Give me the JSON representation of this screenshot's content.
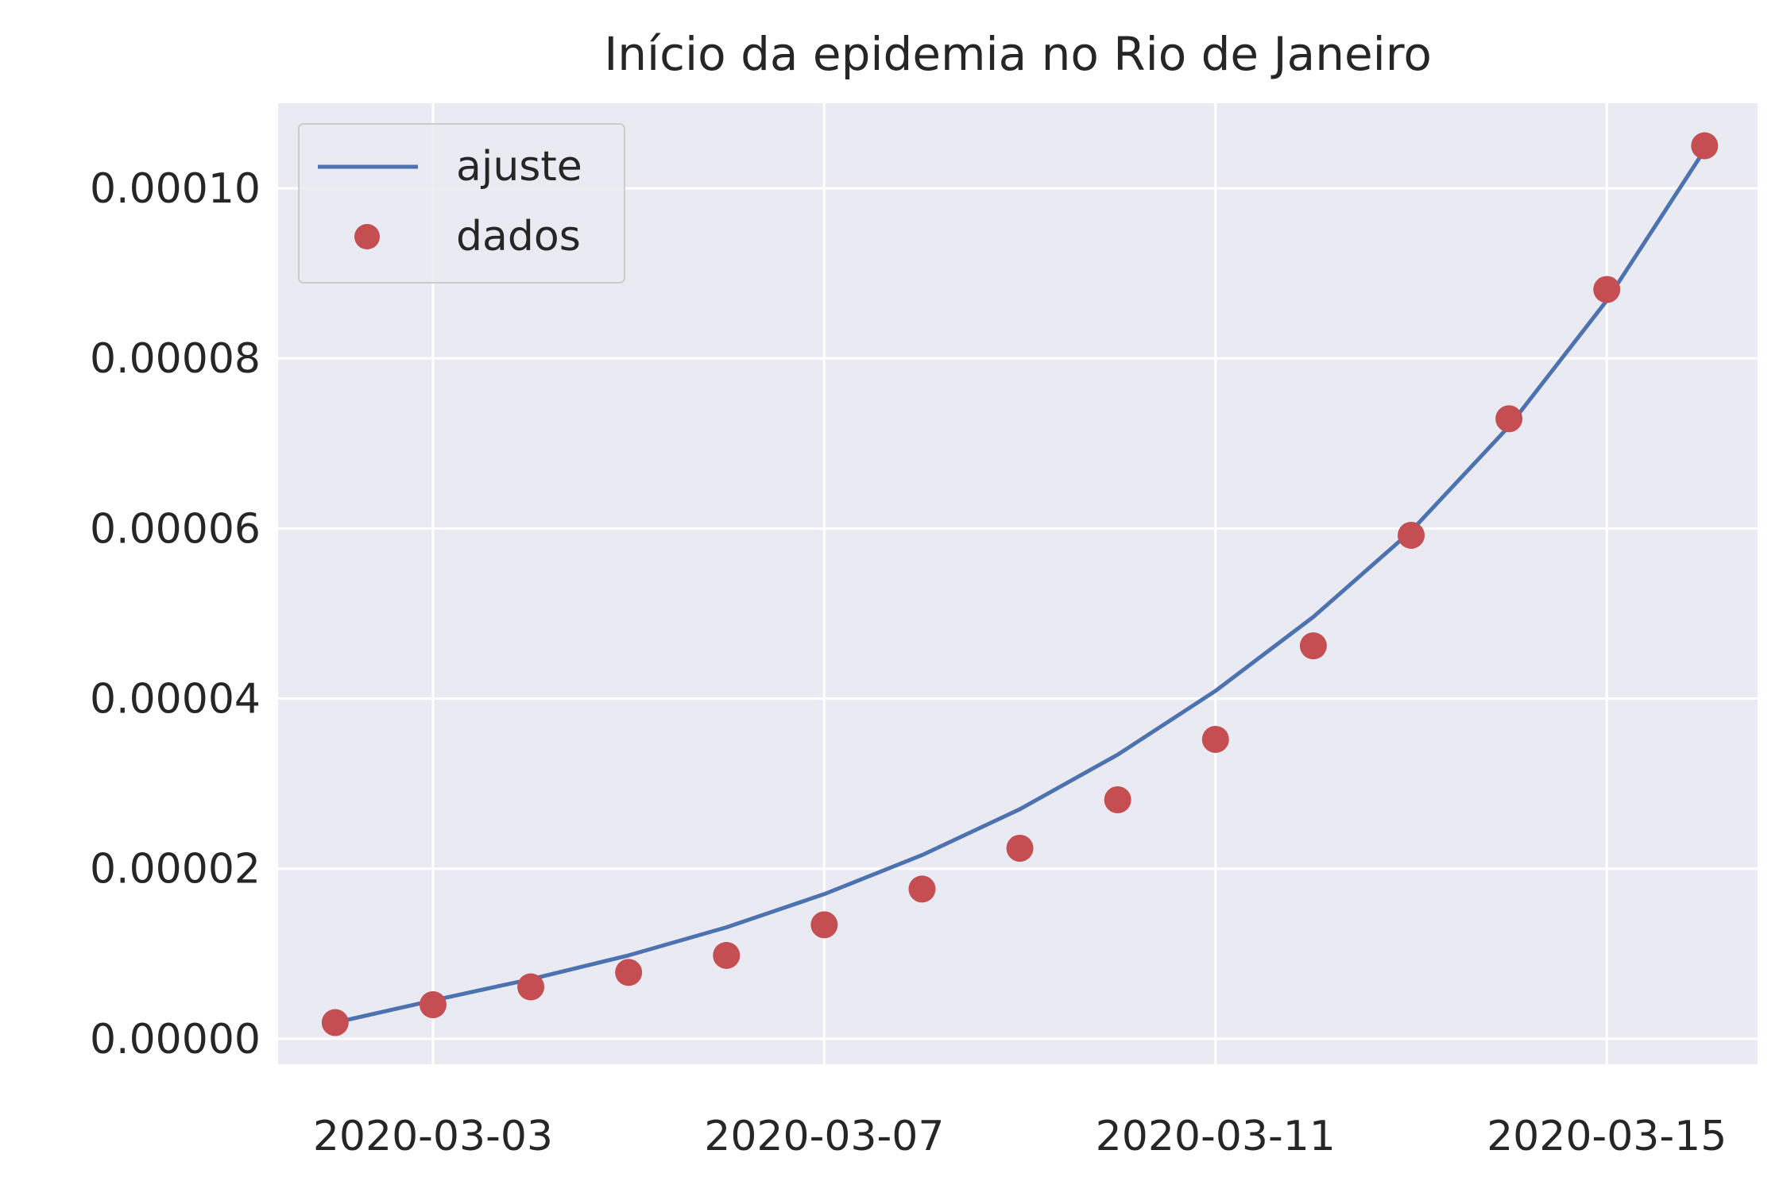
{
  "chart_data": {
    "type": "line",
    "title": "Início da epidemia no Rio de Janeiro",
    "xlabel": "",
    "ylabel": "",
    "x": [
      "2020-03-02",
      "2020-03-03",
      "2020-03-04",
      "2020-03-05",
      "2020-03-06",
      "2020-03-07",
      "2020-03-08",
      "2020-03-09",
      "2020-03-10",
      "2020-03-11",
      "2020-03-12",
      "2020-03-13",
      "2020-03-14",
      "2020-03-15",
      "2020-03-16"
    ],
    "xlim": [
      "2020-03-01T10:00",
      "2020-03-16T13:00"
    ],
    "ylim": [
      -3e-06,
      0.00011
    ],
    "x_ticks": [
      "2020-03-03",
      "2020-03-07",
      "2020-03-11",
      "2020-03-15"
    ],
    "y_ticks": [
      0,
      2e-05,
      4e-05,
      6e-05,
      8e-05,
      0.0001
    ],
    "y_tick_labels": [
      "0.00000",
      "0.00002",
      "0.00004",
      "0.00006",
      "0.00008",
      "0.00010"
    ],
    "grid": true,
    "legend_position": "top-left",
    "background": "#eaeaf2",
    "series": [
      {
        "name": "ajuste",
        "kind": "line",
        "color": "#4c72b0",
        "values": [
          1.9e-06,
          4.5e-06,
          7e-06,
          9.8e-06,
          1.31e-05,
          1.7e-05,
          2.16e-05,
          2.7e-05,
          3.34e-05,
          4.09e-05,
          4.96e-05,
          5.97e-05,
          7.2e-05,
          8.68e-05,
          0.0001045
        ]
      },
      {
        "name": "dados",
        "kind": "scatter",
        "color": "#c44e52",
        "values": [
          1.9e-06,
          4e-06,
          6.1e-06,
          7.8e-06,
          9.8e-06,
          1.34e-05,
          1.76e-05,
          2.24e-05,
          2.81e-05,
          3.52e-05,
          4.62e-05,
          5.92e-05,
          7.29e-05,
          8.81e-05,
          0.000105
        ]
      }
    ]
  }
}
